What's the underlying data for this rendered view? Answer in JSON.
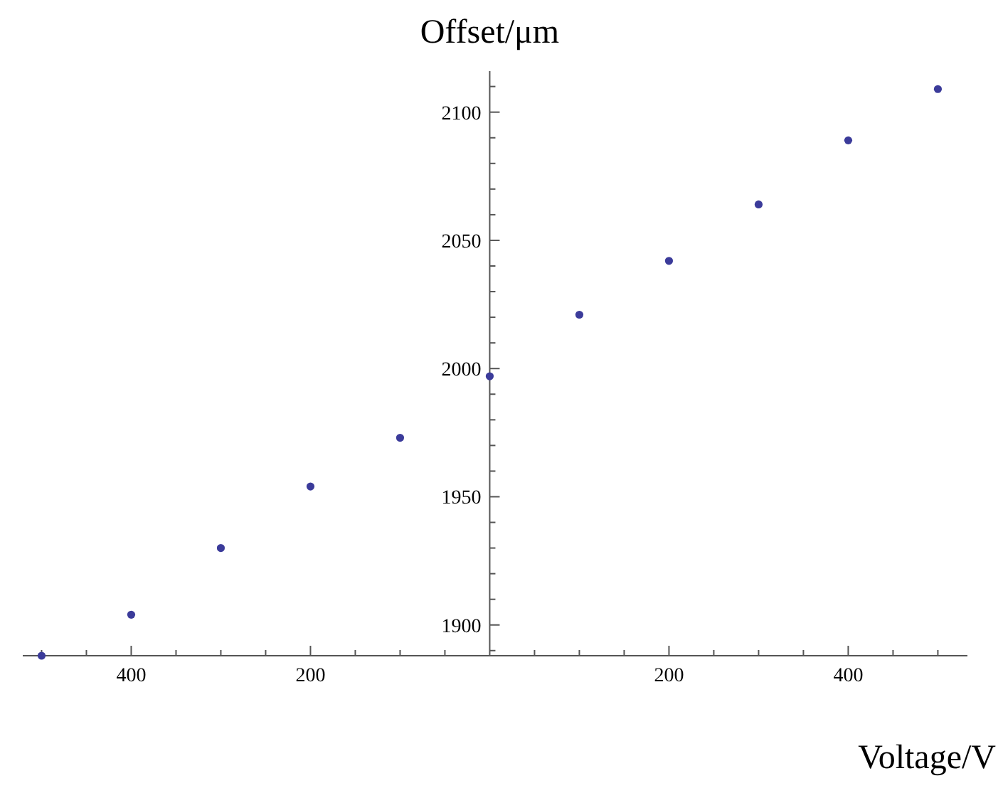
{
  "chart_data": {
    "type": "scatter",
    "xlabel": "Voltage/V",
    "ylabel": "Offset/μm",
    "x": [
      -500,
      -400,
      -300,
      -200,
      -100,
      0,
      100,
      200,
      300,
      400,
      500
    ],
    "series": [
      {
        "color": "#3b3b9a",
        "values": [
          1888,
          1904,
          1930,
          1954,
          1973,
          1997,
          2021,
          2042,
          2064,
          2089,
          2109
        ]
      }
    ],
    "marker": "circle",
    "xlim": [
      -521,
      533
    ],
    "ylim": [
      1888,
      2116
    ],
    "xticks": [
      {
        "value": -500,
        "label": null
      },
      {
        "value": -450,
        "label": null
      },
      {
        "value": -400,
        "label": "400"
      },
      {
        "value": -350,
        "label": null
      },
      {
        "value": -300,
        "label": null
      },
      {
        "value": -250,
        "label": null
      },
      {
        "value": -200,
        "label": "200"
      },
      {
        "value": -150,
        "label": null
      },
      {
        "value": -100,
        "label": null
      },
      {
        "value": -50,
        "label": null
      },
      {
        "value": 50,
        "label": null
      },
      {
        "value": 100,
        "label": null
      },
      {
        "value": 150,
        "label": null
      },
      {
        "value": 200,
        "label": "200"
      },
      {
        "value": 250,
        "label": null
      },
      {
        "value": 300,
        "label": null
      },
      {
        "value": 350,
        "label": null
      },
      {
        "value": 400,
        "label": "400"
      },
      {
        "value": 450,
        "label": null
      },
      {
        "value": 500,
        "label": null
      }
    ],
    "yticks": [
      {
        "value": 1890,
        "label": null
      },
      1900,
      {
        "value": 1910,
        "label": null
      },
      {
        "value": 1920,
        "label": null
      },
      {
        "value": 1930,
        "label": null
      },
      {
        "value": 1940,
        "label": null
      },
      1950,
      {
        "value": 1960,
        "label": null
      },
      {
        "value": 1970,
        "label": null
      },
      {
        "value": 1980,
        "label": null
      },
      {
        "value": 1990,
        "label": null
      },
      2000,
      {
        "value": 2010,
        "label": null
      },
      {
        "value": 2020,
        "label": null
      },
      {
        "value": 2030,
        "label": null
      },
      {
        "value": 2040,
        "label": null
      },
      2050,
      {
        "value": 2060,
        "label": null
      },
      {
        "value": 2070,
        "label": null
      },
      {
        "value": 2080,
        "label": null
      },
      {
        "value": 2090,
        "label": null
      },
      2100,
      {
        "value": 2110,
        "label": null
      }
    ]
  }
}
